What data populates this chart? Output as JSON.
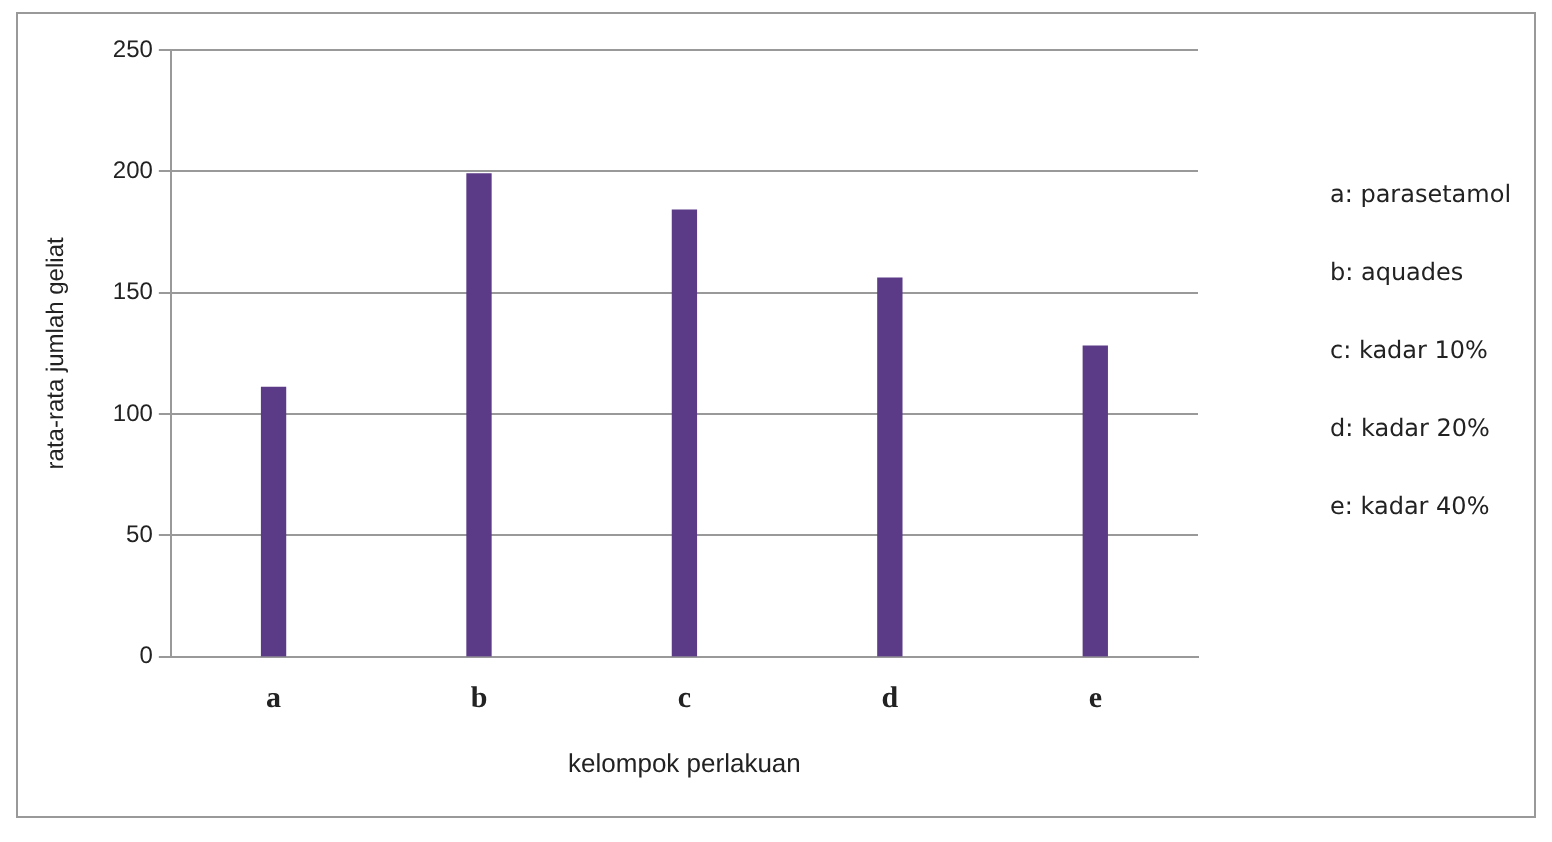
{
  "chart_data": {
    "type": "bar",
    "xlabel": "kelompok perlakuan",
    "ylabel": "rata-rata jumlah geliat",
    "categories": [
      "a",
      "b",
      "c",
      "d",
      "e"
    ],
    "values": [
      111,
      199,
      184,
      156,
      128
    ],
    "color": "#5b3a87",
    "ylim": [
      0,
      250
    ],
    "yticks": [
      0,
      50,
      100,
      150,
      200,
      250
    ],
    "grid": "y",
    "legend": false,
    "annotations": [
      "a: parasetamol",
      "b: aquades",
      "c: kadar 10%",
      "d: kadar 20%",
      "e: kadar 40%"
    ]
  }
}
